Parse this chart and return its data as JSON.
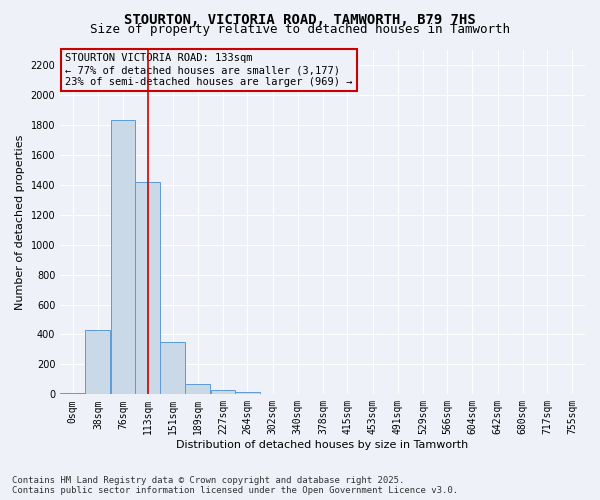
{
  "title_line1": "STOURTON, VICTORIA ROAD, TAMWORTH, B79 7HS",
  "title_line2": "Size of property relative to detached houses in Tamworth",
  "xlabel": "Distribution of detached houses by size in Tamworth",
  "ylabel": "Number of detached properties",
  "bin_labels": [
    "0sqm",
    "38sqm",
    "76sqm",
    "113sqm",
    "151sqm",
    "189sqm",
    "227sqm",
    "264sqm",
    "302sqm",
    "340sqm",
    "378sqm",
    "415sqm",
    "453sqm",
    "491sqm",
    "529sqm",
    "566sqm",
    "604sqm",
    "642sqm",
    "680sqm",
    "717sqm",
    "755sqm"
  ],
  "bin_edges": [
    0,
    38,
    76,
    113,
    151,
    189,
    227,
    264,
    302,
    340,
    378,
    415,
    453,
    491,
    529,
    566,
    604,
    642,
    680,
    717,
    755
  ],
  "bar_values": [
    10,
    430,
    1830,
    1415,
    350,
    70,
    30,
    15,
    5,
    0,
    0,
    0,
    0,
    0,
    0,
    0,
    0,
    0,
    0,
    0
  ],
  "bar_color": "#c9d9e8",
  "bar_edgecolor": "#5b9bd5",
  "property_size": 133,
  "vline_color": "#cc0000",
  "annotation_text": "STOURTON VICTORIA ROAD: 133sqm\n← 77% of detached houses are smaller (3,177)\n23% of semi-detached houses are larger (969) →",
  "annotation_box_edgecolor": "#cc0000",
  "ylim": [
    0,
    2300
  ],
  "yticks": [
    0,
    200,
    400,
    600,
    800,
    1000,
    1200,
    1400,
    1600,
    1800,
    2000,
    2200
  ],
  "background_color": "#eef2f8",
  "grid_color": "#ffffff",
  "footer_line1": "Contains HM Land Registry data © Crown copyright and database right 2025.",
  "footer_line2": "Contains public sector information licensed under the Open Government Licence v3.0.",
  "title_fontsize": 10,
  "subtitle_fontsize": 9,
  "axis_label_fontsize": 8,
  "tick_fontsize": 7,
  "annotation_fontsize": 7.5,
  "footer_fontsize": 6.5
}
